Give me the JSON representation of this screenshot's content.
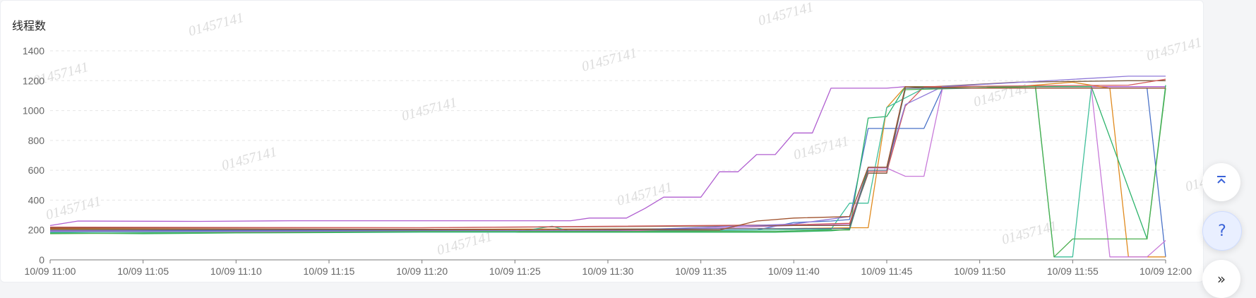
{
  "title": "线程数",
  "watermark": "01457141",
  "buttons": {
    "back_to_top_icon": "chevrons-up-icon",
    "help_label": "?",
    "more_label": "»"
  },
  "chart_data": {
    "type": "line",
    "title": "线程数",
    "ylim": [
      0,
      1400
    ],
    "yticks": [
      0,
      200,
      400,
      600,
      800,
      1000,
      1200,
      1400
    ],
    "xticks": [
      "10/09 11:00",
      "10/09 11:05",
      "10/09 11:10",
      "10/09 11:15",
      "10/09 11:20",
      "10/09 11:25",
      "10/09 11:30",
      "10/09 11:35",
      "10/09 11:40",
      "10/09 11:45",
      "10/09 11:50",
      "10/09 11:55",
      "10/09 12:00"
    ],
    "x_unit_minutes": "minutes after 10/09 11:00",
    "grid": true,
    "legend": "none",
    "series": [
      {
        "color": "#b05fd0",
        "points": [
          [
            0,
            230
          ],
          [
            1.5,
            260
          ],
          [
            8,
            258
          ],
          [
            13,
            262
          ],
          [
            20,
            262
          ],
          [
            28,
            262
          ],
          [
            29,
            280
          ],
          [
            31,
            280
          ],
          [
            32,
            345
          ],
          [
            33,
            420
          ],
          [
            35,
            420
          ],
          [
            36,
            590
          ],
          [
            37,
            590
          ],
          [
            38,
            705
          ],
          [
            39,
            705
          ],
          [
            40,
            850
          ],
          [
            41,
            850
          ],
          [
            42,
            1150
          ],
          [
            45,
            1150
          ],
          [
            46,
            1160
          ],
          [
            60,
            1160
          ]
        ]
      },
      {
        "color": "#4a72c8",
        "points": [
          [
            0,
            200
          ],
          [
            10,
            195
          ],
          [
            20,
            195
          ],
          [
            30,
            195
          ],
          [
            38,
            200
          ],
          [
            40,
            250
          ],
          [
            42,
            260
          ],
          [
            43,
            270
          ],
          [
            44,
            880
          ],
          [
            45,
            880
          ],
          [
            46,
            880
          ],
          [
            47,
            880
          ],
          [
            48,
            1150
          ],
          [
            55,
            1150
          ],
          [
            59,
            1150
          ],
          [
            60,
            20
          ]
        ]
      },
      {
        "color": "#e08a1e",
        "points": [
          [
            0,
            205
          ],
          [
            20,
            205
          ],
          [
            40,
            210
          ],
          [
            43,
            215
          ],
          [
            44,
            215
          ],
          [
            45,
            1020
          ],
          [
            46,
            1160
          ],
          [
            52,
            1160
          ],
          [
            55,
            1190
          ],
          [
            57,
            1150
          ],
          [
            58,
            20
          ],
          [
            60,
            20
          ]
        ]
      },
      {
        "color": "#2db36b",
        "points": [
          [
            0,
            180
          ],
          [
            5,
            175
          ],
          [
            10,
            180
          ],
          [
            20,
            185
          ],
          [
            30,
            185
          ],
          [
            39,
            185
          ],
          [
            42,
            195
          ],
          [
            43,
            205
          ],
          [
            44,
            950
          ],
          [
            45,
            960
          ],
          [
            46,
            1160
          ],
          [
            50,
            1160
          ],
          [
            56,
            1160
          ],
          [
            59,
            140
          ],
          [
            60,
            1170
          ]
        ]
      },
      {
        "color": "#3fbf9a",
        "points": [
          [
            0,
            185
          ],
          [
            10,
            185
          ],
          [
            25,
            185
          ],
          [
            27,
            225
          ],
          [
            28,
            190
          ],
          [
            35,
            195
          ],
          [
            42,
            205
          ],
          [
            43,
            380
          ],
          [
            44,
            380
          ],
          [
            45,
            1020
          ],
          [
            47,
            1150
          ],
          [
            53,
            1150
          ],
          [
            54,
            20
          ],
          [
            55,
            20
          ],
          [
            56,
            1150
          ],
          [
            60,
            1150
          ]
        ]
      },
      {
        "color": "#c87ad9",
        "points": [
          [
            0,
            195
          ],
          [
            10,
            190
          ],
          [
            30,
            190
          ],
          [
            40,
            230
          ],
          [
            43,
            240
          ],
          [
            44,
            615
          ],
          [
            45,
            615
          ],
          [
            46,
            560
          ],
          [
            47,
            560
          ],
          [
            48,
            1150
          ],
          [
            56,
            1150
          ],
          [
            57,
            20
          ],
          [
            59,
            20
          ],
          [
            60,
            130
          ]
        ]
      },
      {
        "color": "#7a5a3c",
        "points": [
          [
            0,
            215
          ],
          [
            20,
            215
          ],
          [
            40,
            230
          ],
          [
            43,
            230
          ],
          [
            44,
            580
          ],
          [
            45,
            580
          ],
          [
            46,
            1150
          ],
          [
            52,
            1190
          ],
          [
            58,
            1200
          ],
          [
            60,
            1200
          ]
        ]
      },
      {
        "color": "#d35c5c",
        "points": [
          [
            0,
            220
          ],
          [
            20,
            215
          ],
          [
            40,
            235
          ],
          [
            43,
            245
          ],
          [
            44,
            590
          ],
          [
            45,
            590
          ],
          [
            46,
            1030
          ],
          [
            47,
            1160
          ],
          [
            58,
            1170
          ],
          [
            60,
            1210
          ]
        ]
      },
      {
        "color": "#8f78d8",
        "points": [
          [
            0,
            190
          ],
          [
            30,
            195
          ],
          [
            40,
            240
          ],
          [
            43,
            290
          ],
          [
            44,
            620
          ],
          [
            45,
            620
          ],
          [
            46,
            1040
          ],
          [
            48,
            1160
          ],
          [
            58,
            1230
          ],
          [
            60,
            1230
          ]
        ]
      },
      {
        "color": "#4caf50",
        "points": [
          [
            0,
            175
          ],
          [
            20,
            190
          ],
          [
            39,
            190
          ],
          [
            42,
            200
          ],
          [
            43,
            200
          ],
          [
            44,
            620
          ],
          [
            45,
            620
          ],
          [
            46,
            1140
          ],
          [
            53,
            1160
          ],
          [
            54,
            20
          ],
          [
            55,
            140
          ],
          [
            58,
            140
          ],
          [
            59,
            140
          ],
          [
            60,
            1150
          ]
        ]
      },
      {
        "color": "#556b8a",
        "points": [
          [
            0,
            200
          ],
          [
            20,
            200
          ],
          [
            40,
            210
          ],
          [
            43,
            210
          ],
          [
            44,
            600
          ],
          [
            45,
            600
          ],
          [
            46,
            1150
          ],
          [
            60,
            1150
          ]
        ]
      },
      {
        "color": "#a0522d",
        "points": [
          [
            0,
            210
          ],
          [
            20,
            205
          ],
          [
            36,
            200
          ],
          [
            38,
            260
          ],
          [
            40,
            280
          ],
          [
            43,
            290
          ],
          [
            44,
            620
          ],
          [
            45,
            620
          ],
          [
            46,
            1160
          ],
          [
            50,
            1150
          ],
          [
            60,
            1150
          ]
        ]
      }
    ]
  }
}
